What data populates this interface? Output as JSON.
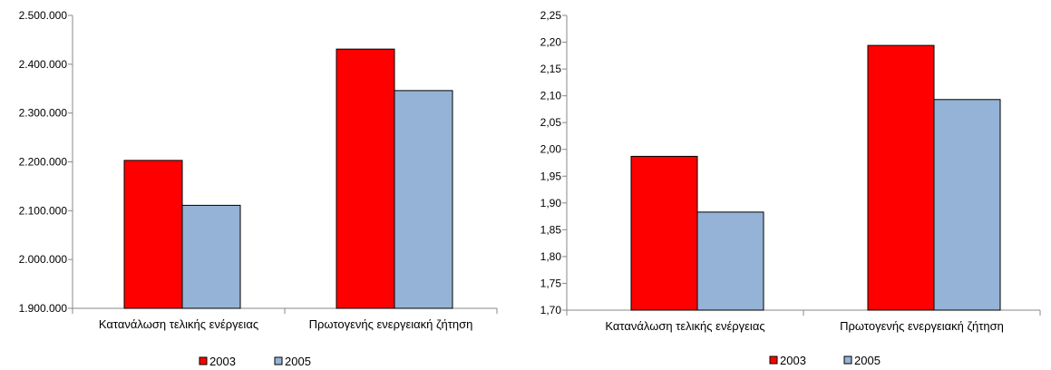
{
  "chart_data": [
    {
      "type": "bar",
      "categories": [
        "Κατανάλωση τελικής ενέργειας",
        "Πρωτογενής ενεργειακή ζήτηση"
      ],
      "series": [
        {
          "name": "2003",
          "values": [
            2203000,
            2431000
          ]
        },
        {
          "name": "2005",
          "values": [
            2111000,
            2346000
          ]
        }
      ],
      "ylim": [
        1900000,
        2500000
      ],
      "yticks": [
        1900000,
        2000000,
        2100000,
        2200000,
        2300000,
        2400000,
        2500000
      ],
      "ytick_labels": [
        "1.900.000",
        "2.000.000",
        "2.100.000",
        "2.200.000",
        "2.300.000",
        "2.400.000",
        "2.500.000"
      ],
      "grid": false,
      "legend": "bottom"
    },
    {
      "type": "bar",
      "categories": [
        "Κατανάλωση τελικής ενέργειας",
        "Πρωτογενής ενεργειακή ζήτηση"
      ],
      "series": [
        {
          "name": "2003",
          "values": [
            1.987,
            2.194
          ]
        },
        {
          "name": "2005",
          "values": [
            1.883,
            2.093
          ]
        }
      ],
      "ylim": [
        1.7,
        2.25
      ],
      "yticks": [
        1.7,
        1.75,
        1.8,
        1.85,
        1.9,
        1.95,
        2.0,
        2.05,
        2.1,
        2.15,
        2.2,
        2.25
      ],
      "ytick_labels": [
        "1,70",
        "1,75",
        "1,80",
        "1,85",
        "1,90",
        "1,95",
        "2,00",
        "2,05",
        "2,10",
        "2,15",
        "2,20",
        "2,25"
      ],
      "grid": false,
      "legend": "bottom"
    }
  ],
  "colors": {
    "2003": "#ff0000",
    "2005": "#95b3d7"
  }
}
